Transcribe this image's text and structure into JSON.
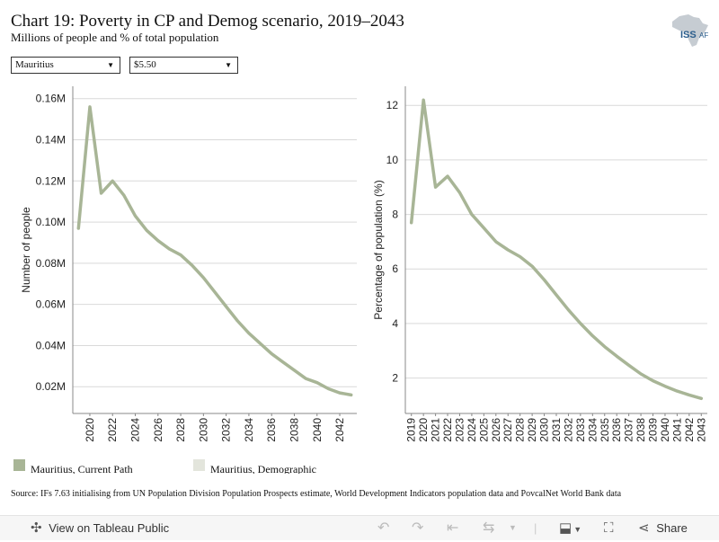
{
  "title": "Chart 19: Poverty in CP and Demog scenario, 2019–2043",
  "subtitle": "Millions of people and % of total population",
  "logo": {
    "text_main": "ISS",
    "text_suffix": "AF",
    "icon": "africa-map-icon"
  },
  "filters": {
    "country": "Mauritius",
    "poverty_line": "$5.50"
  },
  "colors": {
    "current_path": "#a8b596",
    "demographic": "#e3e5dc",
    "gridline": "#d9d9d9",
    "axis": "#888888"
  },
  "chart_data": [
    {
      "type": "line",
      "ylabel": "Number of people",
      "ylim": [
        0.007,
        0.166
      ],
      "yticks": [
        0.02,
        0.04,
        0.06,
        0.08,
        0.1,
        0.12,
        0.14,
        0.16
      ],
      "ytick_labels": [
        "0.02M",
        "0.04M",
        "0.06M",
        "0.08M",
        "0.10M",
        "0.12M",
        "0.14M",
        "0.16M"
      ],
      "xlim": [
        2018.5,
        2043.5
      ],
      "xticks": [
        "2020",
        "2022",
        "2024",
        "2026",
        "2028",
        "2030",
        "2032",
        "2034",
        "2036",
        "2038",
        "2040",
        "2042"
      ],
      "x": [
        2019,
        2020,
        2021,
        2022,
        2023,
        2024,
        2025,
        2026,
        2027,
        2028,
        2029,
        2030,
        2031,
        2032,
        2033,
        2034,
        2035,
        2036,
        2037,
        2038,
        2039,
        2040,
        2041,
        2042,
        2043
      ],
      "series": [
        {
          "name": "Mauritius, Current Path",
          "values": [
            0.097,
            0.156,
            0.114,
            0.12,
            0.113,
            0.103,
            0.096,
            0.091,
            0.087,
            0.084,
            0.079,
            0.073,
            0.066,
            0.059,
            0.052,
            0.046,
            0.041,
            0.036,
            0.032,
            0.028,
            0.024,
            0.022,
            0.019,
            0.017,
            0.016
          ]
        }
      ]
    },
    {
      "type": "line",
      "ylabel": "Percentage of population (%)",
      "ylim": [
        0.7,
        12.7
      ],
      "yticks": [
        2,
        4,
        6,
        8,
        10,
        12
      ],
      "ytick_labels": [
        "2",
        "4",
        "6",
        "8",
        "10",
        "12"
      ],
      "xlim": [
        2018.5,
        2043.5
      ],
      "xticks": [
        "2019",
        "2020",
        "2021",
        "2022",
        "2023",
        "2024",
        "2025",
        "2026",
        "2027",
        "2028",
        "2029",
        "2030",
        "2031",
        "2032",
        "2033",
        "2034",
        "2035",
        "2036",
        "2037",
        "2038",
        "2039",
        "2040",
        "2041",
        "2042",
        "2043"
      ],
      "x": [
        2019,
        2020,
        2021,
        2022,
        2023,
        2024,
        2025,
        2026,
        2027,
        2028,
        2029,
        2030,
        2031,
        2032,
        2033,
        2034,
        2035,
        2036,
        2037,
        2038,
        2039,
        2040,
        2041,
        2042,
        2043
      ],
      "series": [
        {
          "name": "Mauritius, Current Path",
          "values": [
            7.7,
            12.2,
            9.0,
            9.4,
            8.8,
            8.0,
            7.5,
            7.0,
            6.7,
            6.45,
            6.1,
            5.6,
            5.05,
            4.5,
            4.0,
            3.55,
            3.15,
            2.8,
            2.47,
            2.15,
            1.9,
            1.7,
            1.52,
            1.38,
            1.25
          ]
        }
      ]
    }
  ],
  "legend": [
    {
      "label": "Mauritius, Current Path",
      "color": "#a8b596"
    },
    {
      "label": "Mauritius, Demographic",
      "color": "#e3e5dc"
    }
  ],
  "source": "Source: IFs 7.63 initialising from UN Population Division Population Prospects estimate, World Development Indicators population data and PovcalNet World Bank data",
  "toolbar": {
    "view_label": "View on Tableau Public",
    "share_label": "Share"
  }
}
